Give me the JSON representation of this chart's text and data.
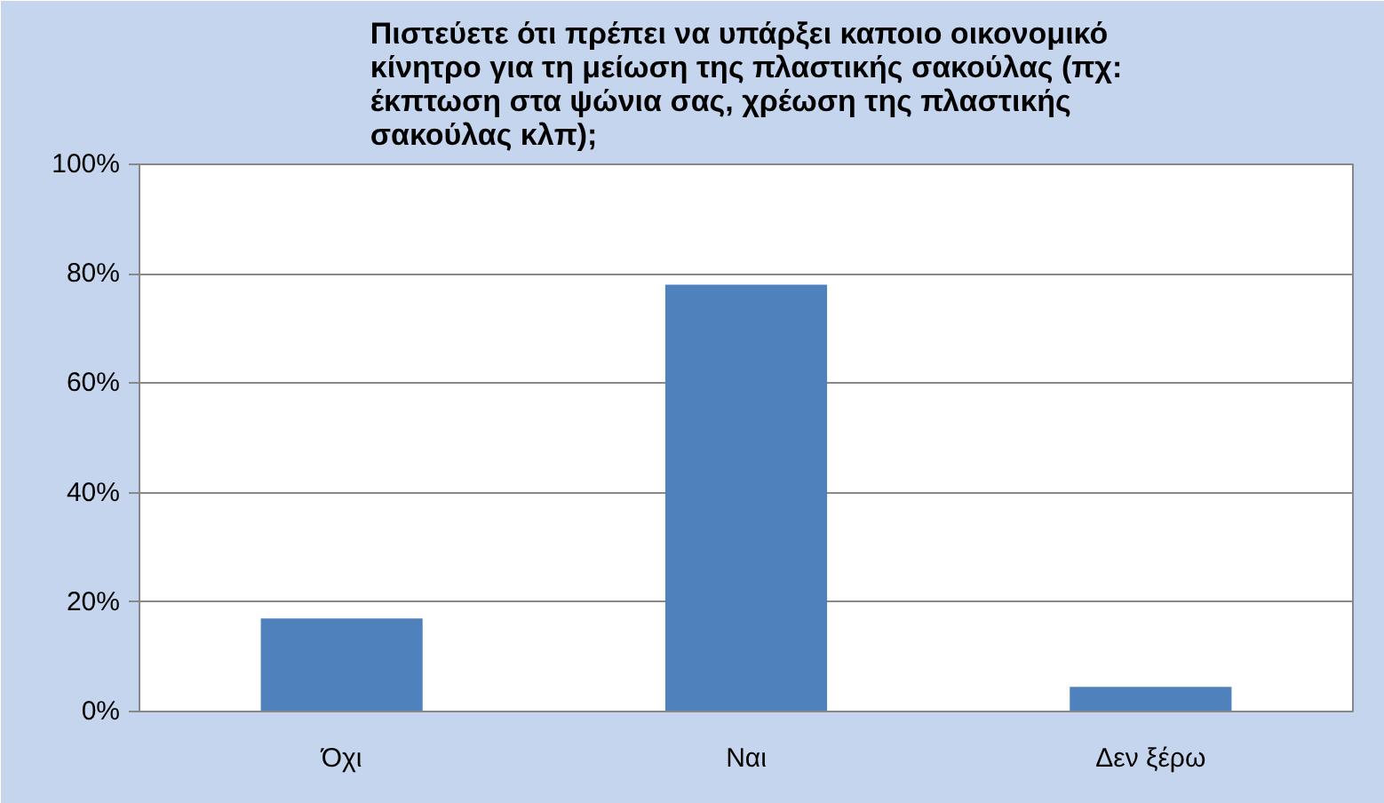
{
  "chart_data": {
    "type": "bar",
    "title": "Πιστεύετε ότι πρέπει να υπάρξει καποιο οικονομικό κίνητρο για τη μείωση της πλαστικής σακούλας (πχ: έκπτωση στα ψώνια σας, χρέωση της πλαστικής σακούλας κλπ);",
    "categories": [
      "Όχι",
      "Ναι",
      "Δεν ξέρω"
    ],
    "values": [
      17,
      78,
      4.5
    ],
    "color": "#4f81bd",
    "ylim": [
      0,
      100
    ],
    "yticks": [
      {
        "value": 0,
        "label": "0%"
      },
      {
        "value": 20,
        "label": "20%"
      },
      {
        "value": 40,
        "label": "40%"
      },
      {
        "value": 60,
        "label": "60%"
      },
      {
        "value": 80,
        "label": "80%"
      },
      {
        "value": 100,
        "label": "100%"
      }
    ],
    "grid": "y"
  }
}
